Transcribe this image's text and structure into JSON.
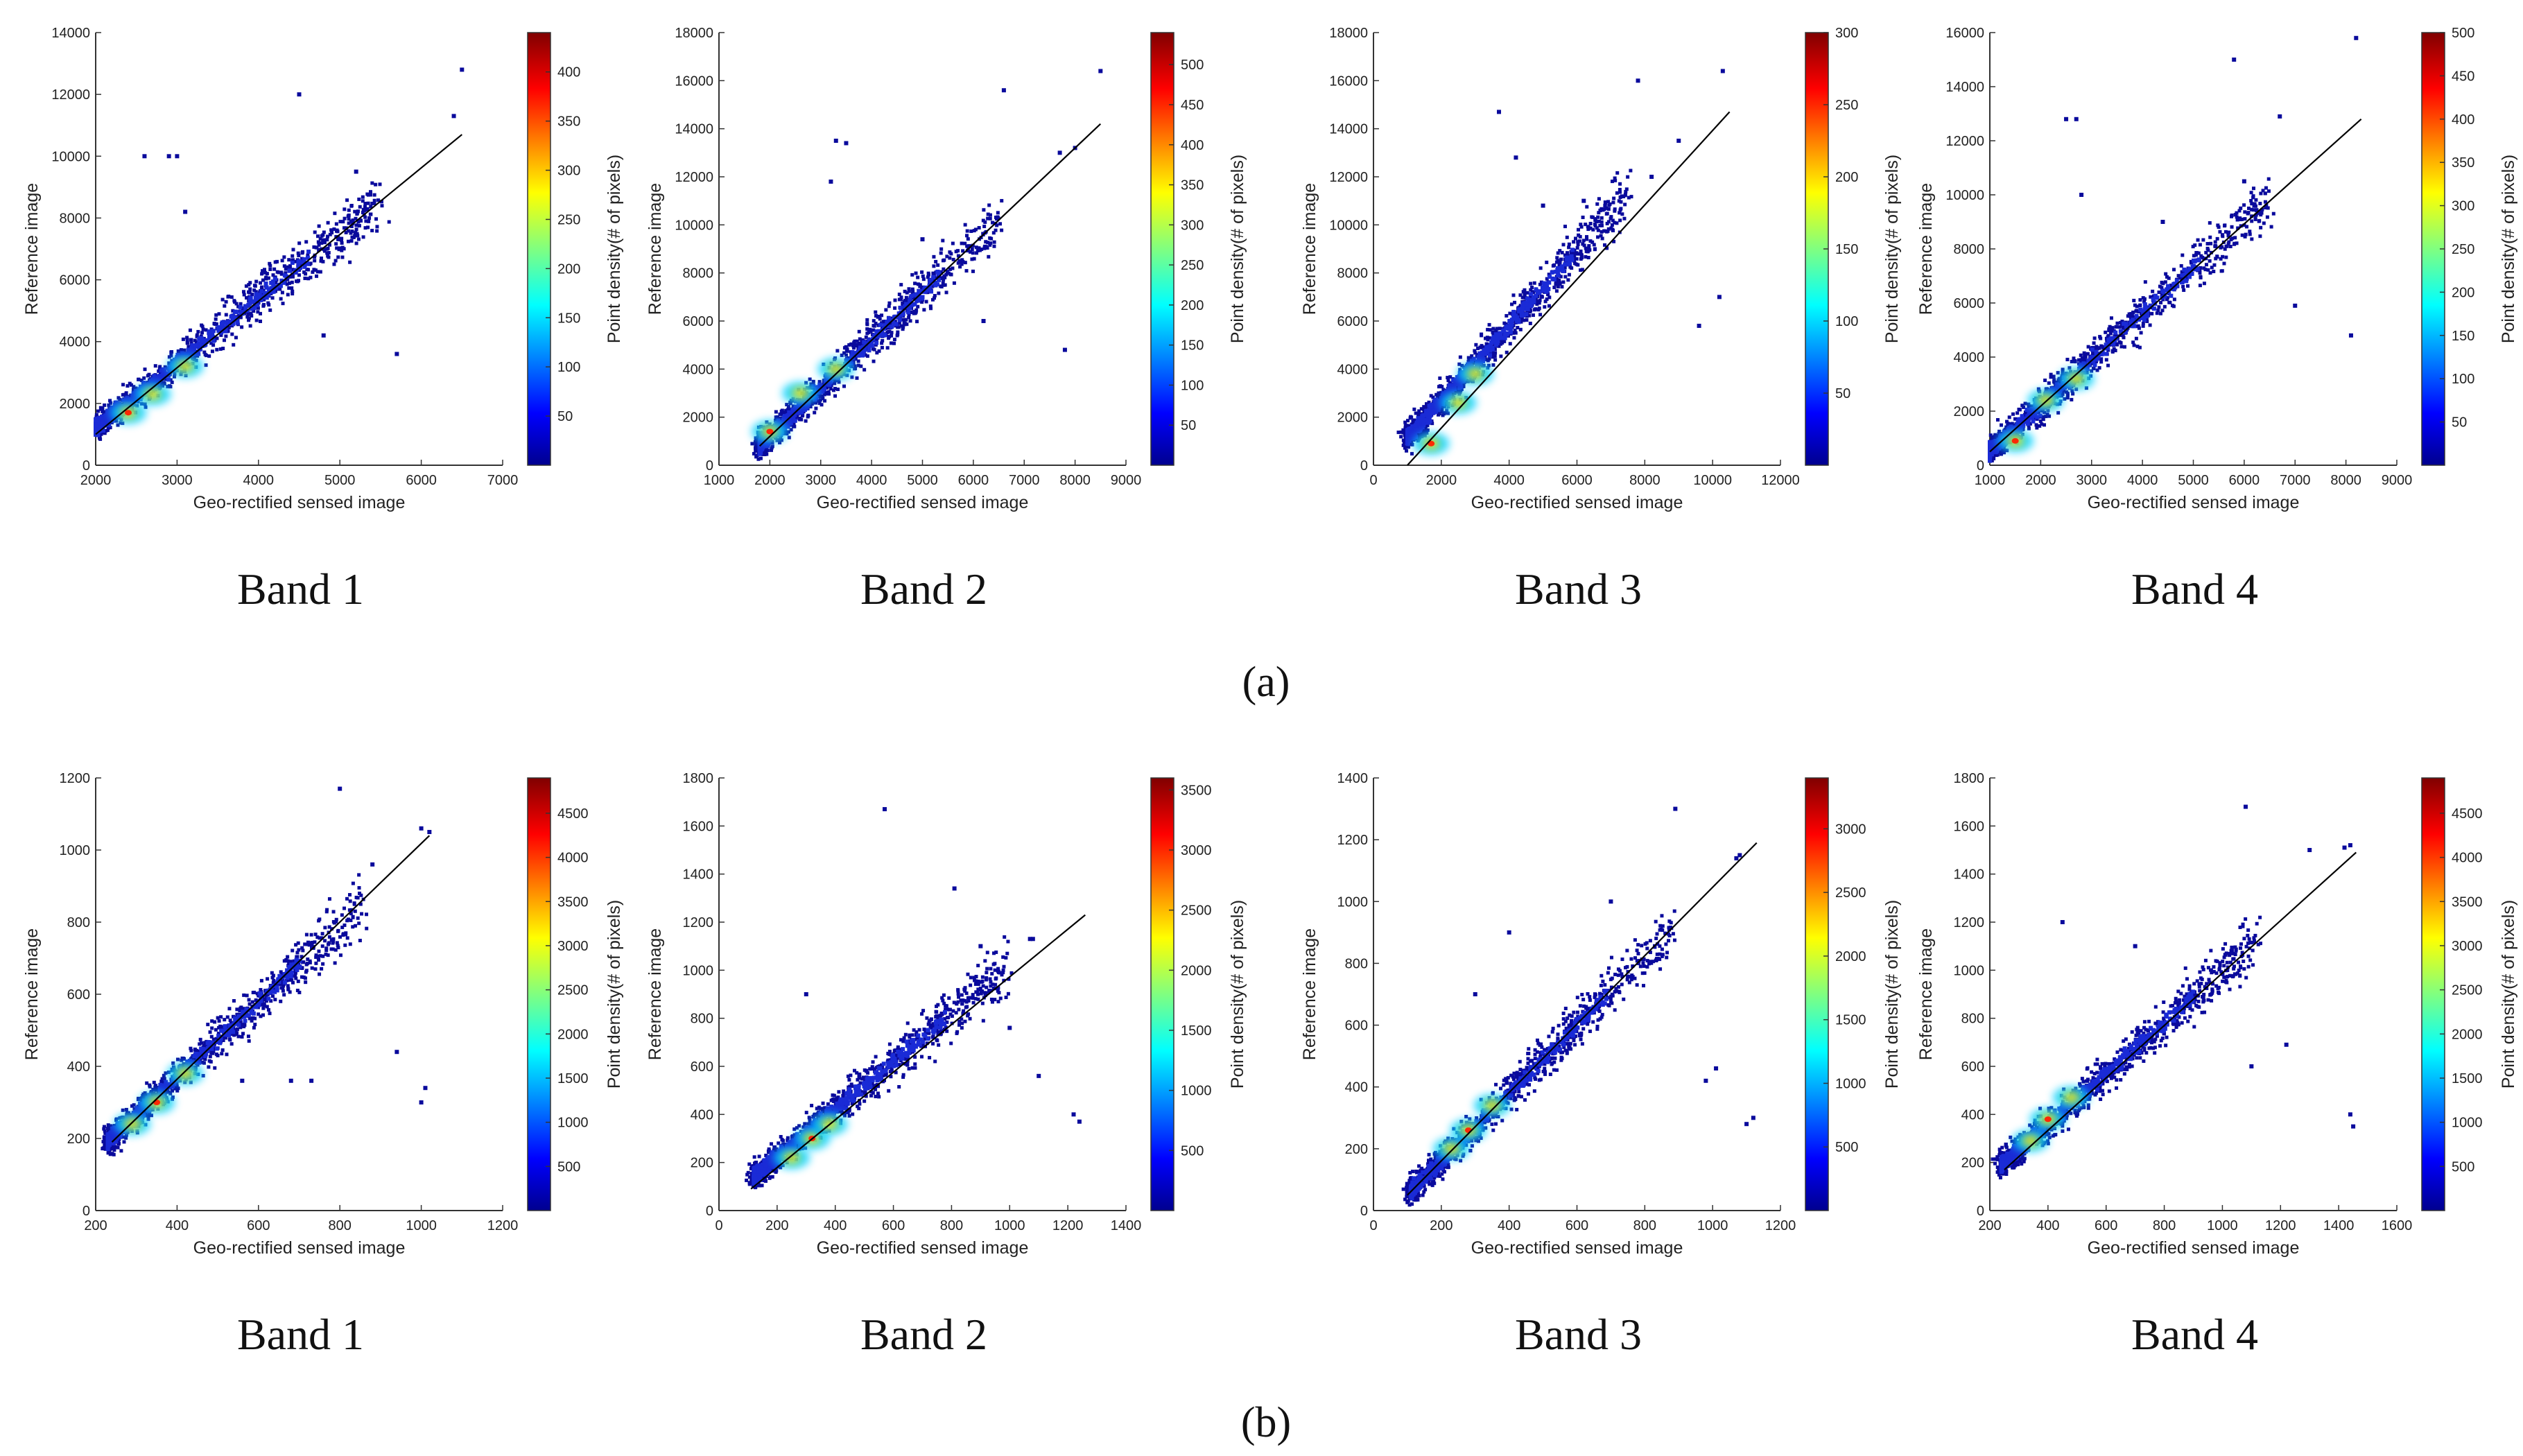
{
  "figure": {
    "row_labels": [
      "(a)",
      "(b)"
    ],
    "x_axis_label": "Geo-rectified sensed image",
    "y_axis_label": "Reference image",
    "colorbar_label": "Point density(# of pixels)",
    "colormap": [
      "#00008f",
      "#0000ff",
      "#0080ff",
      "#00ffff",
      "#80ff80",
      "#ffff00",
      "#ff8000",
      "#ff0000",
      "#800000"
    ],
    "regression_line_color": "#000000",
    "point_color": "#0a0a9c"
  },
  "chart_data": [
    {
      "type": "scatter",
      "row": "a",
      "caption": "Band 1",
      "xlabel": "Geo-rectified sensed image",
      "ylabel": "Reference image",
      "colorbar_label": "Point density(# of pixels)",
      "xlim": [
        2000,
        7000
      ],
      "ylim": [
        0,
        14000
      ],
      "xticks": [
        2000,
        3000,
        4000,
        5000,
        6000,
        7000
      ],
      "yticks": [
        0,
        2000,
        4000,
        6000,
        8000,
        10000,
        12000,
        14000
      ],
      "cbar_range": [
        0,
        440
      ],
      "cbar_ticks": [
        50,
        100,
        150,
        200,
        250,
        300,
        350,
        400
      ],
      "fit_line": [
        [
          2000,
          1000
        ],
        [
          6500,
          10700
        ]
      ],
      "trend": {
        "x0": 2000,
        "x1": 5500,
        "slope": 2.1,
        "intercept": -3000
      },
      "outliers": [
        [
          2600,
          10000
        ],
        [
          2900,
          10000
        ],
        [
          3000,
          10000
        ],
        [
          4500,
          12000
        ],
        [
          6500,
          12800
        ],
        [
          5700,
          3600
        ],
        [
          6400,
          11300
        ],
        [
          4800,
          4200
        ],
        [
          3100,
          8200
        ],
        [
          5200,
          9500
        ]
      ],
      "hotspots": [
        [
          2400,
          1700
        ],
        [
          3100,
          3200
        ],
        [
          2700,
          2300
        ]
      ]
    },
    {
      "type": "scatter",
      "row": "a",
      "caption": "Band 2",
      "xlabel": "Geo-rectified sensed image",
      "ylabel": "Reference image",
      "colorbar_label": "Point density(# of pixels)",
      "xlim": [
        1000,
        9000
      ],
      "ylim": [
        0,
        18000
      ],
      "xticks": [
        1000,
        2000,
        3000,
        4000,
        5000,
        6000,
        7000,
        8000,
        9000
      ],
      "yticks": [
        0,
        2000,
        4000,
        6000,
        8000,
        10000,
        12000,
        14000,
        16000,
        18000
      ],
      "cbar_range": [
        0,
        540
      ],
      "cbar_ticks": [
        50,
        100,
        150,
        200,
        250,
        300,
        350,
        400,
        450,
        500
      ],
      "fit_line": [
        [
          1800,
          800
        ],
        [
          8500,
          14200
        ]
      ],
      "trend": {
        "x0": 1800,
        "x1": 6500,
        "slope": 2.0,
        "intercept": -2800
      },
      "outliers": [
        [
          3300,
          13500
        ],
        [
          3500,
          13400
        ],
        [
          6600,
          15600
        ],
        [
          8500,
          16400
        ],
        [
          7800,
          4800
        ],
        [
          6200,
          6000
        ],
        [
          3200,
          11800
        ],
        [
          7700,
          13000
        ],
        [
          5000,
          9400
        ],
        [
          8000,
          13200
        ]
      ],
      "hotspots": [
        [
          2000,
          1400
        ],
        [
          2600,
          3000
        ],
        [
          3300,
          4000
        ]
      ]
    },
    {
      "type": "scatter",
      "row": "a",
      "caption": "Band 3",
      "xlabel": "Geo-rectified sensed image",
      "ylabel": "Reference image",
      "colorbar_label": "Point density(# of pixels)",
      "xlim": [
        0,
        12000
      ],
      "ylim": [
        0,
        18000
      ],
      "xticks": [
        0,
        2000,
        4000,
        6000,
        8000,
        10000,
        12000
      ],
      "yticks": [
        0,
        2000,
        4000,
        6000,
        8000,
        10000,
        12000,
        14000,
        16000,
        18000
      ],
      "cbar_range": [
        0,
        300
      ],
      "cbar_ticks": [
        50,
        100,
        150,
        200,
        250,
        300
      ],
      "fit_line": [
        [
          1000,
          0
        ],
        [
          10500,
          14700
        ]
      ],
      "trend": {
        "x0": 1000,
        "x1": 7500,
        "slope": 1.55,
        "intercept": -400
      },
      "outliers": [
        [
          3700,
          14700
        ],
        [
          4200,
          12800
        ],
        [
          7800,
          16000
        ],
        [
          10300,
          16400
        ],
        [
          10200,
          7000
        ],
        [
          9600,
          5800
        ],
        [
          9000,
          13500
        ],
        [
          8200,
          12000
        ],
        [
          6200,
          11000
        ],
        [
          5000,
          10800
        ]
      ],
      "hotspots": [
        [
          1700,
          900
        ],
        [
          3000,
          3800
        ],
        [
          2500,
          2600
        ]
      ]
    },
    {
      "type": "scatter",
      "row": "a",
      "caption": "Band 4",
      "xlabel": "Geo-rectified sensed image",
      "ylabel": "Reference image",
      "colorbar_label": "Point density(# of pixels)",
      "xlim": [
        1000,
        9000
      ],
      "ylim": [
        0,
        16000
      ],
      "xticks": [
        1000,
        2000,
        3000,
        4000,
        5000,
        6000,
        7000,
        8000,
        9000
      ],
      "yticks": [
        0,
        2000,
        4000,
        6000,
        8000,
        10000,
        12000,
        14000,
        16000
      ],
      "cbar_range": [
        0,
        500
      ],
      "cbar_ticks": [
        50,
        100,
        150,
        200,
        250,
        300,
        350,
        400,
        450,
        500
      ],
      "fit_line": [
        [
          1000,
          500
        ],
        [
          8300,
          12800
        ]
      ],
      "trend": {
        "x0": 1000,
        "x1": 6500,
        "slope": 1.7,
        "intercept": -1200
      },
      "outliers": [
        [
          2500,
          12800
        ],
        [
          2700,
          12800
        ],
        [
          5800,
          15000
        ],
        [
          8200,
          15800
        ],
        [
          8100,
          4800
        ],
        [
          7000,
          5900
        ],
        [
          6700,
          12900
        ],
        [
          2800,
          10000
        ],
        [
          4400,
          9000
        ],
        [
          6000,
          10500
        ]
      ],
      "hotspots": [
        [
          1500,
          900
        ],
        [
          2100,
          2400
        ],
        [
          2700,
          3200
        ]
      ]
    },
    {
      "type": "scatter",
      "row": "b",
      "caption": "Band 1",
      "xlabel": "Geo-rectified sensed image",
      "ylabel": "Reference image",
      "colorbar_label": "Point density(# of pixels)",
      "xlim": [
        200,
        1200
      ],
      "ylim": [
        0,
        1200
      ],
      "xticks": [
        200,
        400,
        600,
        800,
        1000,
        1200
      ],
      "yticks": [
        0,
        200,
        400,
        600,
        800,
        1000,
        1200
      ],
      "cbar_range": [
        0,
        4900
      ],
      "cbar_ticks": [
        500,
        1000,
        1500,
        2000,
        2500,
        3000,
        3500,
        4000,
        4500
      ],
      "fit_line": [
        [
          240,
          190
        ],
        [
          1020,
          1040
        ]
      ],
      "trend": {
        "x0": 230,
        "x1": 860,
        "slope": 1.05,
        "intercept": -50
      },
      "outliers": [
        [
          800,
          1170
        ],
        [
          1000,
          300
        ],
        [
          1010,
          340
        ],
        [
          940,
          440
        ],
        [
          730,
          360
        ],
        [
          880,
          960
        ],
        [
          1000,
          1060
        ],
        [
          1020,
          1050
        ],
        [
          560,
          360
        ],
        [
          680,
          360
        ]
      ],
      "hotspots": [
        [
          350,
          300
        ],
        [
          290,
          240
        ],
        [
          420,
          380
        ]
      ]
    },
    {
      "type": "scatter",
      "row": "b",
      "caption": "Band 2",
      "xlabel": "Geo-rectified sensed image",
      "ylabel": "Reference image",
      "colorbar_label": "Point density(# of pixels)",
      "xlim": [
        0,
        1400
      ],
      "ylim": [
        0,
        1800
      ],
      "xticks": [
        0,
        200,
        400,
        600,
        800,
        1000,
        1200,
        1400
      ],
      "yticks": [
        0,
        200,
        400,
        600,
        800,
        1000,
        1200,
        1400,
        1600,
        1800
      ],
      "cbar_range": [
        0,
        3600
      ],
      "cbar_ticks": [
        500,
        1000,
        1500,
        2000,
        2500,
        3000,
        3500
      ],
      "fit_line": [
        [
          110,
          90
        ],
        [
          1260,
          1230
        ]
      ],
      "trend": {
        "x0": 120,
        "x1": 1000,
        "slope": 1.0,
        "intercept": 20
      },
      "outliers": [
        [
          570,
          1670
        ],
        [
          810,
          1340
        ],
        [
          1240,
          370
        ],
        [
          1220,
          400
        ],
        [
          1070,
          1130
        ],
        [
          1080,
          1130
        ],
        [
          1000,
          760
        ],
        [
          300,
          900
        ],
        [
          1100,
          560
        ],
        [
          900,
          1100
        ]
      ],
      "hotspots": [
        [
          320,
          300
        ],
        [
          380,
          360
        ],
        [
          250,
          220
        ]
      ]
    },
    {
      "type": "scatter",
      "row": "b",
      "caption": "Band 3",
      "xlabel": "Geo-rectified sensed image",
      "ylabel": "Reference image",
      "colorbar_label": "Point density(# of pixels)",
      "xlim": [
        0,
        1200
      ],
      "ylim": [
        0,
        1400
      ],
      "xticks": [
        0,
        200,
        400,
        600,
        800,
        1000,
        1200
      ],
      "yticks": [
        0,
        200,
        400,
        600,
        800,
        1000,
        1200,
        1400
      ],
      "cbar_range": [
        0,
        3400
      ],
      "cbar_ticks": [
        500,
        1000,
        1500,
        2000,
        2500,
        3000
      ],
      "fit_line": [
        [
          100,
          50
        ],
        [
          1130,
          1190
        ]
      ],
      "trend": {
        "x0": 110,
        "x1": 880,
        "slope": 1.1,
        "intercept": -60
      },
      "outliers": [
        [
          890,
          1300
        ],
        [
          1070,
          1140
        ],
        [
          1080,
          1150
        ],
        [
          1120,
          300
        ],
        [
          1100,
          280
        ],
        [
          400,
          900
        ],
        [
          980,
          420
        ],
        [
          1010,
          460
        ],
        [
          300,
          700
        ],
        [
          700,
          1000
        ]
      ],
      "hotspots": [
        [
          280,
          260
        ],
        [
          230,
          200
        ],
        [
          350,
          340
        ]
      ]
    },
    {
      "type": "scatter",
      "row": "b",
      "caption": "Band 4",
      "xlabel": "Geo-rectified sensed image",
      "ylabel": "Reference image",
      "colorbar_label": "Point density(# of pixels)",
      "xlim": [
        200,
        1600
      ],
      "ylim": [
        0,
        1800
      ],
      "xticks": [
        200,
        400,
        600,
        800,
        1000,
        1200,
        1400,
        1600
      ],
      "yticks": [
        0,
        200,
        400,
        600,
        800,
        1000,
        1200,
        1400,
        1600,
        1800
      ],
      "cbar_range": [
        0,
        4900
      ],
      "cbar_ticks": [
        500,
        1000,
        1500,
        2000,
        2500,
        3000,
        3500,
        4000,
        4500
      ],
      "fit_line": [
        [
          250,
          170
        ],
        [
          1460,
          1490
        ]
      ],
      "trend": {
        "x0": 240,
        "x1": 1120,
        "slope": 1.05,
        "intercept": -60
      },
      "outliers": [
        [
          1080,
          1680
        ],
        [
          1440,
          400
        ],
        [
          1450,
          350
        ],
        [
          1420,
          1510
        ],
        [
          1440,
          1520
        ],
        [
          1220,
          690
        ],
        [
          1100,
          600
        ],
        [
          450,
          1200
        ],
        [
          700,
          1100
        ],
        [
          1300,
          1500
        ]
      ],
      "hotspots": [
        [
          400,
          380
        ],
        [
          340,
          290
        ],
        [
          480,
          470
        ]
      ]
    }
  ]
}
